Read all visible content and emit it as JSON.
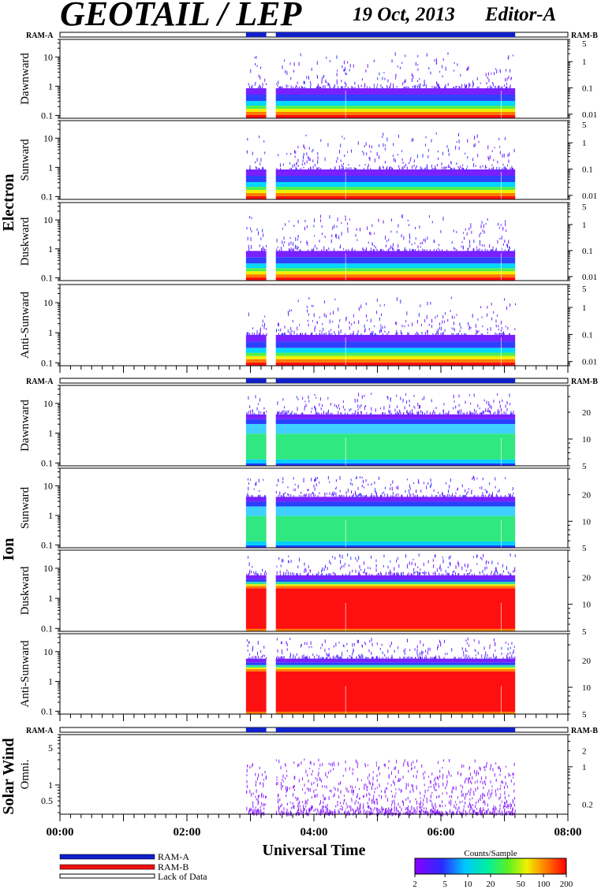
{
  "header": {
    "title": "GEOTAIL / LEP",
    "date": "19 Oct, 2013",
    "editor": "Editor-A"
  },
  "colors": {
    "ram_a": "#1020c8",
    "ram_b": "#ee1010",
    "frame": "#000000",
    "background": "#ffffff"
  },
  "groups": [
    {
      "label": "Electron",
      "ram_left": "RAM-A",
      "ram_right": "RAM-B"
    },
    {
      "label": "Ion",
      "ram_left": "RAM-A",
      "ram_right": "RAM-B"
    },
    {
      "label": "Solar Wind",
      "ram_left": "RAM-A",
      "ram_right": "RAM-B"
    }
  ],
  "x_axis": {
    "label": "Universal Time",
    "tick_labels": [
      "00:00",
      "02:00",
      "04:00",
      "06:00",
      "08:00"
    ]
  },
  "legend": {
    "items": [
      {
        "label": "RAM-A",
        "color": "#1020c8"
      },
      {
        "label": "RAM-B",
        "color": "#ee1010"
      },
      {
        "label": "Lack of Data",
        "color": "#ffffff"
      }
    ]
  },
  "colorbar": {
    "title": "Counts/Sample",
    "tick_labels": [
      "2",
      "5",
      "10",
      "20",
      "50",
      "100",
      "200"
    ]
  },
  "chart_data": {
    "type": "heatmap",
    "x_unit": "UT hours",
    "xlim": [
      0,
      8
    ],
    "data_start_hour": 2.93,
    "data_end_hour": 7.17,
    "gaps_hours": [
      [
        3.25,
        3.4
      ]
    ],
    "ram_a_intervals_hours": [
      [
        2.93,
        3.25
      ],
      [
        3.4,
        7.17
      ]
    ],
    "ram_b_intervals_hours": [],
    "panels": [
      {
        "group": "Electron",
        "ylabel": "Dawnward",
        "left_ticks": [
          "10",
          "1",
          "0.1"
        ],
        "left_values": [
          10,
          1,
          0.1
        ],
        "right_ticks": [
          "5",
          "1",
          "0.1",
          "0.01"
        ],
        "right_values": [
          5,
          1,
          0.1,
          0.01
        ],
        "ylim": [
          0.08,
          40
        ],
        "rlim": [
          0.007,
          7
        ],
        "profile": "low"
      },
      {
        "group": "Electron",
        "ylabel": "Sunward",
        "left_ticks": [
          "10",
          "1",
          "0.1"
        ],
        "left_values": [
          10,
          1,
          0.1
        ],
        "right_ticks": [
          "5",
          "1",
          "0.1",
          "0.01"
        ],
        "right_values": [
          5,
          1,
          0.1,
          0.01
        ],
        "ylim": [
          0.08,
          40
        ],
        "rlim": [
          0.007,
          7
        ],
        "profile": "low"
      },
      {
        "group": "Electron",
        "ylabel": "Duskward",
        "left_ticks": [
          "10",
          "1",
          "0.1"
        ],
        "left_values": [
          10,
          1,
          0.1
        ],
        "right_ticks": [
          "5",
          "1",
          "0.1",
          "0.01"
        ],
        "right_values": [
          5,
          1,
          0.1,
          0.01
        ],
        "ylim": [
          0.08,
          40
        ],
        "rlim": [
          0.007,
          7
        ],
        "profile": "low"
      },
      {
        "group": "Electron",
        "ylabel": "Anti-Sunward",
        "left_ticks": [
          "10",
          "1",
          "0.1"
        ],
        "left_values": [
          10,
          1,
          0.1
        ],
        "right_ticks": [
          "5",
          "1",
          "0.1",
          "0.01"
        ],
        "right_values": [
          5,
          1,
          0.1,
          0.01
        ],
        "ylim": [
          0.08,
          40
        ],
        "rlim": [
          0.007,
          7
        ],
        "profile": "low"
      },
      {
        "group": "Ion",
        "ylabel": "Dawnward",
        "left_ticks": [
          "10",
          "1",
          "0.1"
        ],
        "left_values": [
          10,
          1,
          0.1
        ],
        "right_ticks": [
          "20",
          "10",
          "5"
        ],
        "right_values": [
          20,
          10,
          5
        ],
        "ylim": [
          0.08,
          40
        ],
        "rlim": [
          5,
          40
        ],
        "profile": "ion_mid"
      },
      {
        "group": "Ion",
        "ylabel": "Sunward",
        "left_ticks": [
          "10",
          "1",
          "0.1"
        ],
        "left_values": [
          10,
          1,
          0.1
        ],
        "right_ticks": [
          "20",
          "10",
          "5"
        ],
        "right_values": [
          20,
          10,
          5
        ],
        "ylim": [
          0.08,
          40
        ],
        "rlim": [
          5,
          40
        ],
        "profile": "ion_mid"
      },
      {
        "group": "Ion",
        "ylabel": "Duskward",
        "left_ticks": [
          "10",
          "1",
          "0.1"
        ],
        "left_values": [
          10,
          1,
          0.1
        ],
        "right_ticks": [
          "20",
          "10",
          "5"
        ],
        "right_values": [
          20,
          10,
          5
        ],
        "ylim": [
          0.08,
          40
        ],
        "rlim": [
          5,
          40
        ],
        "profile": "ion_high"
      },
      {
        "group": "Ion",
        "ylabel": "Anti-Sunward",
        "left_ticks": [
          "10",
          "1",
          "0.1"
        ],
        "left_values": [
          10,
          1,
          0.1
        ],
        "right_ticks": [
          "20",
          "10",
          "5"
        ],
        "right_values": [
          20,
          10,
          5
        ],
        "ylim": [
          0.08,
          40
        ],
        "rlim": [
          5,
          40
        ],
        "profile": "ion_high"
      },
      {
        "group": "Solar Wind",
        "ylabel": "Omni.",
        "left_ticks": [
          "5",
          "1",
          "0.5"
        ],
        "left_values": [
          5,
          1,
          0.5
        ],
        "right_ticks": [
          "2",
          "1",
          "0.2"
        ],
        "right_values": [
          2,
          1,
          0.2
        ],
        "ylim": [
          0.28,
          9
        ],
        "rlim": [
          0.13,
          4
        ],
        "profile": "sw"
      }
    ]
  }
}
